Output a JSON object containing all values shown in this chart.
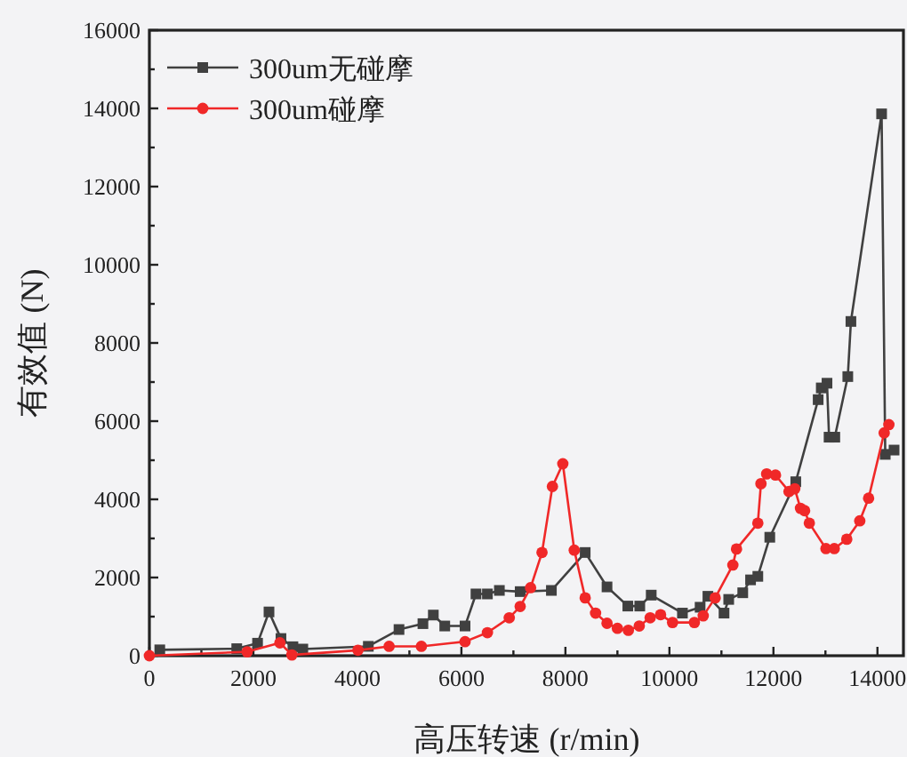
{
  "chart_data": {
    "type": "line",
    "xlabel": "高压转速 (r/min)",
    "ylabel": "有效值 (N)",
    "xlim": [
      0,
      14500
    ],
    "ylim": [
      0,
      16000
    ],
    "xticks": [
      0,
      {
        "value": 1000,
        "label": null
      },
      2000,
      {
        "value": 3000,
        "label": null
      },
      4000,
      {
        "value": 5000,
        "label": null
      },
      6000,
      {
        "value": 7000,
        "label": null
      },
      8000,
      {
        "value": 9000,
        "label": null
      },
      10000,
      {
        "value": 11000,
        "label": null
      },
      12000,
      {
        "value": 13000,
        "label": null
      },
      14000
    ],
    "yticks": [
      0,
      {
        "value": 1000,
        "label": null
      },
      2000,
      {
        "value": 3000,
        "label": null
      },
      4000,
      {
        "value": 5000,
        "label": null
      },
      6000,
      {
        "value": 7000,
        "label": null
      },
      8000,
      {
        "value": 9000,
        "label": null
      },
      10000,
      {
        "value": 11000,
        "label": null
      },
      12000,
      {
        "value": 13000,
        "label": null
      },
      14000,
      {
        "value": 15000,
        "label": null
      },
      16000
    ],
    "grid": false,
    "legend": "top left",
    "line_style": "solid",
    "series": [
      {
        "name": "300um无碰摩",
        "color": "#404040",
        "marker": "square",
        "x": [
          200,
          1680,
          2080,
          2300,
          2530,
          2760,
          2950,
          4210,
          4800,
          5260,
          5460,
          5680,
          6070,
          6280,
          6500,
          6730,
          7130,
          7730,
          8380,
          8800,
          9200,
          9430,
          9650,
          10250,
          10590,
          10740,
          11050,
          11140,
          11410,
          11560,
          11700,
          11930,
          12430,
          12860,
          12920,
          13030,
          13070,
          13180,
          13430,
          13490,
          14080,
          14150,
          14320
        ],
        "values": [
          150,
          180,
          320,
          1120,
          440,
          230,
          170,
          240,
          670,
          820,
          1040,
          760,
          760,
          1580,
          1580,
          1670,
          1640,
          1670,
          2640,
          1760,
          1270,
          1270,
          1550,
          1090,
          1240,
          1520,
          1090,
          1440,
          1610,
          1940,
          2030,
          3030,
          4450,
          6550,
          6850,
          6970,
          5590,
          5590,
          7140,
          8550,
          13860,
          5150,
          5260
        ]
      },
      {
        "name": "300um碰摩",
        "color": "#f02828",
        "marker": "circle",
        "x": [
          0,
          1880,
          2510,
          2740,
          4010,
          4610,
          5230,
          6070,
          6500,
          6920,
          7130,
          7330,
          7550,
          7750,
          7950,
          8170,
          8380,
          8580,
          8800,
          9000,
          9210,
          9420,
          9630,
          9830,
          10060,
          10480,
          10650,
          10880,
          11220,
          11290,
          11700,
          11760,
          11870,
          12040,
          12300,
          12410,
          12520,
          12600,
          12690,
          13010,
          13170,
          13410,
          13660,
          13830,
          14130,
          14220
        ],
        "values": [
          0,
          100,
          330,
          20,
          140,
          240,
          240,
          360,
          590,
          970,
          1260,
          1740,
          2640,
          4330,
          4910,
          2700,
          1480,
          1090,
          830,
          700,
          650,
          760,
          970,
          1050,
          850,
          850,
          1020,
          1480,
          2320,
          2730,
          3390,
          4400,
          4650,
          4620,
          4200,
          4270,
          3770,
          3710,
          3390,
          2740,
          2740,
          2980,
          3450,
          4030,
          5700,
          5910
        ]
      }
    ]
  }
}
